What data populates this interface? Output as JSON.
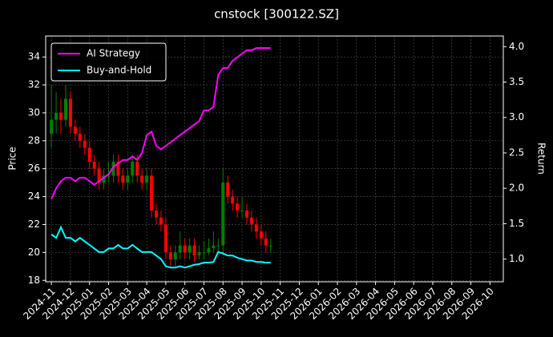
{
  "chart_data": {
    "type": "candlestick",
    "title": "cnstock [300122.SZ]",
    "ylabel": "Price",
    "y2label": "Return",
    "x": [
      0,
      0.25,
      0.5,
      0.75,
      1,
      1.25,
      1.5,
      1.75,
      2,
      2.25,
      2.5,
      2.75,
      3,
      3.25,
      3.5,
      3.75,
      4,
      4.25,
      4.5,
      4.75,
      5,
      5.25,
      5.5,
      5.75,
      6,
      6.25,
      6.5,
      6.75,
      7,
      7.25,
      7.5,
      7.75,
      8,
      8.25,
      8.5,
      8.75,
      9,
      9.25,
      9.5,
      9.75,
      10,
      10.25,
      10.5,
      10.75,
      11,
      11.25,
      11.5
    ],
    "open": [
      28.5,
      29.5,
      30,
      29.5,
      31,
      29,
      28.5,
      28,
      27.5,
      26.5,
      26,
      25,
      25.5,
      25.5,
      26.5,
      25.5,
      25,
      25.5,
      26.5,
      25.5,
      25,
      25.5,
      23,
      22.5,
      22,
      20,
      19.5,
      20,
      20.5,
      20,
      20.5,
      19.8,
      20,
      20,
      20.3,
      20.5,
      20.5,
      25,
      24,
      23.5,
      23,
      23,
      22.5,
      22,
      21.5,
      21,
      20.5
    ],
    "high": [
      32,
      31.5,
      31,
      32,
      31.5,
      29.5,
      29,
      28.5,
      28,
      27,
      26.5,
      26,
      26.5,
      27,
      27,
      26,
      26,
      27,
      27,
      26,
      26,
      26,
      23.5,
      23,
      22.5,
      20.5,
      20.5,
      21.5,
      21,
      21,
      21,
      20.5,
      20.8,
      21,
      21.5,
      21,
      26,
      25.5,
      24.5,
      24,
      24,
      23.5,
      23,
      22.5,
      22,
      21.5,
      21
    ],
    "low": [
      27.5,
      28.5,
      28.5,
      29,
      28.5,
      28,
      27.5,
      27,
      26,
      25.5,
      24.5,
      24.5,
      25,
      25,
      25,
      24.5,
      24.5,
      25,
      25,
      24.5,
      24.5,
      22.5,
      22,
      21.5,
      19.5,
      19,
      19,
      19.5,
      19.5,
      19.5,
      19.3,
      19.5,
      19.5,
      19.8,
      20,
      20,
      20,
      23.5,
      23,
      22.5,
      22.5,
      22,
      21.5,
      21,
      20.5,
      20,
      20
    ],
    "close": [
      29.5,
      30,
      29.5,
      31,
      29,
      28.5,
      28,
      27.5,
      26.5,
      26,
      25,
      25.5,
      25.5,
      26.5,
      25.5,
      25,
      25.5,
      26.5,
      25.5,
      25,
      25.5,
      23,
      22.5,
      22,
      20,
      19.5,
      20,
      20.5,
      20,
      20.5,
      19.8,
      20,
      20,
      20.3,
      20.5,
      20.5,
      25,
      24,
      23.5,
      23,
      23,
      22.5,
      22,
      21.5,
      21,
      20.5,
      20.5
    ],
    "up_color": "#008000",
    "down_color": "#ff0000",
    "series": [
      {
        "name": "AI Strategy",
        "color": "#ff00ff",
        "axis": "y2",
        "values": [
          1.85,
          2.0,
          2.1,
          2.15,
          2.15,
          2.1,
          2.15,
          2.15,
          2.1,
          2.05,
          2.1,
          2.15,
          2.2,
          2.3,
          2.35,
          2.4,
          2.4,
          2.45,
          2.4,
          2.5,
          2.75,
          2.8,
          2.6,
          2.55,
          2.6,
          2.65,
          2.7,
          2.75,
          2.8,
          2.85,
          2.9,
          2.95,
          3.1,
          3.1,
          3.15,
          3.6,
          3.7,
          3.7,
          3.8,
          3.85,
          3.9,
          3.95,
          3.95,
          3.98,
          3.98,
          3.98,
          3.98
        ]
      },
      {
        "name": "Buy-and-Hold",
        "color": "#00ffff",
        "axis": "y2",
        "values": [
          1.35,
          1.3,
          1.45,
          1.3,
          1.3,
          1.25,
          1.3,
          1.25,
          1.2,
          1.15,
          1.1,
          1.1,
          1.15,
          1.15,
          1.2,
          1.15,
          1.15,
          1.2,
          1.15,
          1.1,
          1.1,
          1.1,
          1.05,
          1.0,
          0.9,
          0.88,
          0.88,
          0.9,
          0.88,
          0.9,
          0.92,
          0.93,
          0.95,
          0.95,
          0.96,
          1.1,
          1.08,
          1.05,
          1.05,
          1.02,
          1.0,
          0.98,
          0.98,
          0.96,
          0.96,
          0.95,
          0.95
        ]
      }
    ],
    "xlim": [
      -0.3,
      23.7
    ],
    "xticks": [
      {
        "value": 0,
        "label": "2024-11"
      },
      {
        "value": 1,
        "label": "2024-12"
      },
      {
        "value": 2,
        "label": "2025-01"
      },
      {
        "value": 3,
        "label": "2025-02"
      },
      {
        "value": 4,
        "label": "2025-03"
      },
      {
        "value": 5,
        "label": "2025-04"
      },
      {
        "value": 6,
        "label": "2025-05"
      },
      {
        "value": 7,
        "label": "2025-06"
      },
      {
        "value": 8,
        "label": "2025-07"
      },
      {
        "value": 9,
        "label": "2025-08"
      },
      {
        "value": 10,
        "label": "2025-09"
      },
      {
        "value": 11,
        "label": "2025-10"
      },
      {
        "value": 12,
        "label": "2025-11"
      },
      {
        "value": 13,
        "label": "2025-12"
      },
      {
        "value": 14,
        "label": "2026-01"
      },
      {
        "value": 15,
        "label": "2026-02"
      },
      {
        "value": 16,
        "label": "2026-03"
      },
      {
        "value": 17,
        "label": "2026-04"
      },
      {
        "value": 18,
        "label": "2026-05"
      },
      {
        "value": 19,
        "label": "2026-06"
      },
      {
        "value": 20,
        "label": "2026-07"
      },
      {
        "value": 21,
        "label": "2026-08"
      },
      {
        "value": 22,
        "label": "2026-09"
      },
      {
        "value": 23,
        "label": "2026-10"
      }
    ],
    "ylim": [
      17.9,
      35.5
    ],
    "yticks": [
      18,
      20,
      22,
      24,
      26,
      28,
      30,
      32,
      34
    ],
    "y2lim": [
      0.68,
      4.15
    ],
    "y2ticks": [
      {
        "value": 1,
        "label": "1.0"
      },
      {
        "value": 1.5,
        "label": "1.5"
      },
      {
        "value": 2,
        "label": "2.0"
      },
      {
        "value": 2.5,
        "label": "2.5"
      },
      {
        "value": 3,
        "label": "3.0"
      },
      {
        "value": 3.5,
        "label": "3.5"
      },
      {
        "value": 4,
        "label": "4.0"
      }
    ],
    "grid": true,
    "legend": "upper left"
  }
}
